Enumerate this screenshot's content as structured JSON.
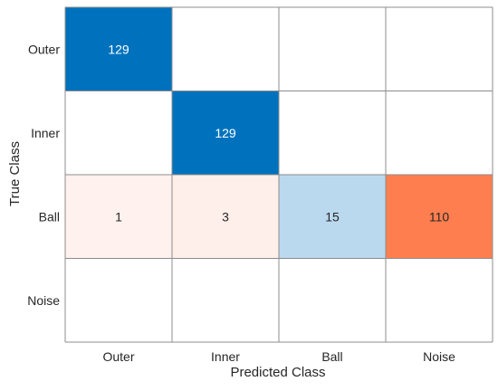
{
  "chart_data": {
    "type": "heatmap",
    "title": "",
    "xlabel": "Predicted Class",
    "ylabel": "True Class",
    "x_categories": [
      "Outer",
      "Inner",
      "Ball",
      "Noise"
    ],
    "y_categories": [
      "Outer",
      "Inner",
      "Ball",
      "Noise"
    ],
    "matrix": [
      [
        129,
        0,
        0,
        0
      ],
      [
        0,
        129,
        0,
        0
      ],
      [
        1,
        3,
        15,
        110
      ],
      [
        0,
        0,
        0,
        0
      ]
    ],
    "colors": {
      "correct_high": "#0072bd",
      "correct_low": "#d2e7f4",
      "error_high": "#ff6a33",
      "error_low": "#fff2ee",
      "empty": "#ffffff",
      "grid": "#8c8c8c",
      "text_dark": "#262626",
      "text_light": "#ffffff"
    },
    "row_max": 129
  }
}
